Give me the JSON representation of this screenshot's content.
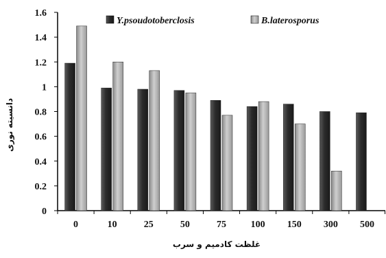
{
  "chart_data": {
    "type": "bar",
    "title": "",
    "xlabel": "غلظت کادمیم و سرب",
    "ylabel": "دانسیته نوری",
    "categories": [
      "0",
      "10",
      "25",
      "50",
      "75",
      "100",
      "150",
      "300",
      "500"
    ],
    "series": [
      {
        "name": "Y.psoudotoberclosis",
        "color": "#3a3a3a",
        "values": [
          1.19,
          0.99,
          0.98,
          0.97,
          0.89,
          0.84,
          0.86,
          0.8,
          0.79
        ]
      },
      {
        "name": "B.laterosporus",
        "color": "#a6a6a6",
        "values": [
          1.49,
          1.2,
          1.13,
          0.95,
          0.77,
          0.88,
          0.7,
          0.32,
          null
        ]
      }
    ],
    "ylim": [
      0,
      1.6
    ],
    "yticks": [
      "0",
      "0.2",
      "0.4",
      "0.6",
      "0.8",
      "1",
      "1.2",
      "1.4",
      "1.6"
    ],
    "legend_position": "top",
    "grid": false
  }
}
